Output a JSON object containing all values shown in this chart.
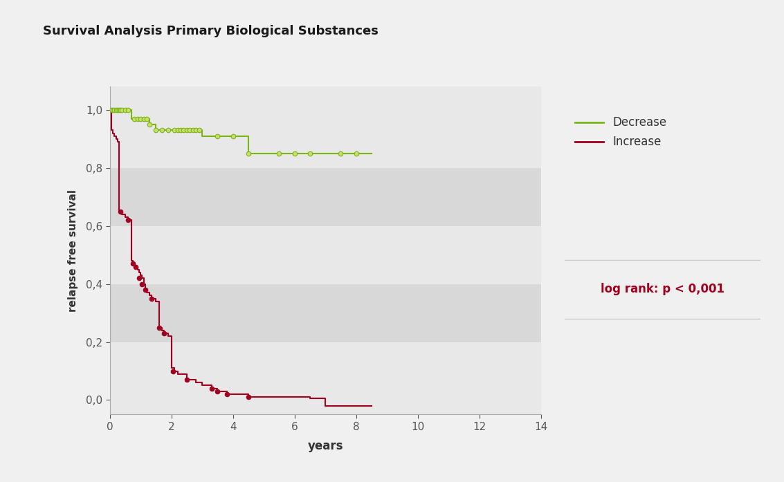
{
  "title": "Survival Analysis Primary Biological Substances",
  "title_fontsize": 13,
  "xlabel": "years",
  "ylabel": "relapse free survival",
  "fig_bg": "#f0f0f0",
  "header_bg": "#dcdcdc",
  "body_bg": "#ffffff",
  "footer_bg": "#e8e8e8",
  "plot_band1": "#e8e8e8",
  "plot_band2": "#d8d8d8",
  "green_color": "#7ab517",
  "red_color": "#a0001e",
  "logrank_text": "log rank: p < 0,001",
  "logrank_color": "#a0001e",
  "yticks": [
    0.0,
    0.2,
    0.4,
    0.6,
    0.8,
    1.0
  ],
  "ytick_labels": [
    "0,0",
    "0,2",
    "0,4",
    "0,6",
    "0,8",
    "1,0"
  ],
  "xticks": [
    0,
    2,
    4,
    6,
    8,
    10,
    12,
    14
  ],
  "xlim": [
    0,
    14
  ],
  "ylim": [
    -0.05,
    1.08
  ],
  "green_step_x": [
    0.0,
    0.05,
    0.1,
    0.15,
    0.2,
    0.25,
    0.3,
    0.35,
    0.4,
    0.5,
    0.6,
    0.7,
    0.8,
    0.9,
    1.0,
    1.1,
    1.2,
    1.3,
    1.5,
    1.7,
    1.9,
    2.1,
    2.2,
    2.3,
    2.4,
    2.5,
    2.6,
    2.7,
    2.8,
    2.9,
    3.0,
    3.5,
    4.0,
    4.5,
    5.0,
    5.5,
    6.0,
    6.5,
    7.0,
    7.5,
    8.0,
    8.5
  ],
  "green_step_y": [
    1.0,
    1.0,
    1.0,
    1.0,
    1.0,
    1.0,
    1.0,
    1.0,
    1.0,
    1.0,
    1.0,
    0.97,
    0.97,
    0.97,
    0.97,
    0.97,
    0.97,
    0.95,
    0.93,
    0.93,
    0.93,
    0.93,
    0.93,
    0.93,
    0.93,
    0.93,
    0.93,
    0.93,
    0.93,
    0.93,
    0.91,
    0.91,
    0.91,
    0.85,
    0.85,
    0.85,
    0.85,
    0.85,
    0.85,
    0.85,
    0.85,
    0.85
  ],
  "red_step_x": [
    0.0,
    0.05,
    0.1,
    0.15,
    0.2,
    0.25,
    0.3,
    0.35,
    0.4,
    0.5,
    0.6,
    0.7,
    0.75,
    0.8,
    0.85,
    0.9,
    0.95,
    1.0,
    1.05,
    1.1,
    1.15,
    1.2,
    1.3,
    1.35,
    1.4,
    1.5,
    1.6,
    1.7,
    1.75,
    1.8,
    1.9,
    2.0,
    2.05,
    2.1,
    2.2,
    2.5,
    2.8,
    3.0,
    3.3,
    3.5,
    3.8,
    4.0,
    4.5,
    5.0,
    6.0,
    6.5,
    7.0,
    8.0,
    8.5
  ],
  "red_step_y": [
    1.0,
    0.93,
    0.92,
    0.91,
    0.9,
    0.89,
    0.65,
    0.65,
    0.64,
    0.63,
    0.62,
    0.48,
    0.47,
    0.46,
    0.46,
    0.45,
    0.44,
    0.43,
    0.42,
    0.4,
    0.38,
    0.37,
    0.36,
    0.35,
    0.35,
    0.34,
    0.25,
    0.24,
    0.23,
    0.23,
    0.22,
    0.11,
    0.11,
    0.1,
    0.09,
    0.07,
    0.06,
    0.05,
    0.04,
    0.03,
    0.02,
    0.02,
    0.01,
    0.01,
    0.01,
    0.005,
    -0.02,
    -0.02,
    -0.02
  ],
  "green_censors_x": [
    0.05,
    0.1,
    0.15,
    0.2,
    0.25,
    0.3,
    0.35,
    0.4,
    0.5,
    0.6,
    0.8,
    0.9,
    1.0,
    1.1,
    1.2,
    1.3,
    1.5,
    1.7,
    1.9,
    2.1,
    2.2,
    2.3,
    2.4,
    2.5,
    2.6,
    2.7,
    2.8,
    2.9,
    3.5,
    4.0,
    4.5,
    5.5,
    6.0,
    6.5,
    7.5,
    8.0
  ],
  "green_censors_y": [
    1.0,
    1.0,
    1.0,
    1.0,
    1.0,
    1.0,
    1.0,
    1.0,
    1.0,
    1.0,
    0.97,
    0.97,
    0.97,
    0.97,
    0.97,
    0.95,
    0.93,
    0.93,
    0.93,
    0.93,
    0.93,
    0.93,
    0.93,
    0.93,
    0.93,
    0.93,
    0.93,
    0.93,
    0.91,
    0.91,
    0.85,
    0.85,
    0.85,
    0.85,
    0.85,
    0.85
  ],
  "red_censors_x": [
    0.35,
    0.6,
    0.75,
    0.85,
    0.95,
    1.05,
    1.15,
    1.35,
    1.6,
    1.75,
    2.05,
    2.5,
    3.3,
    3.5,
    3.8,
    4.5
  ],
  "red_censors_y": [
    0.65,
    0.62,
    0.47,
    0.46,
    0.42,
    0.4,
    0.38,
    0.35,
    0.25,
    0.23,
    0.1,
    0.07,
    0.04,
    0.03,
    0.02,
    0.01
  ],
  "legend_labels": [
    "Decrease",
    "Increase"
  ],
  "legend_colors": [
    "#7ab517",
    "#a0001e"
  ],
  "divider_color": "#cccccc"
}
